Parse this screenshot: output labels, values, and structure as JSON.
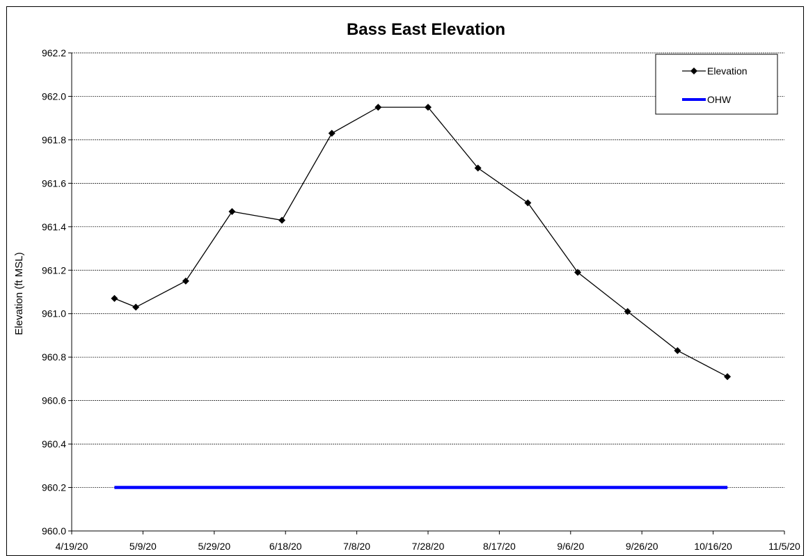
{
  "chart_data": {
    "type": "line",
    "title": "Bass East Elevation",
    "xlabel": "",
    "ylabel": "Elevation (ft MSL)",
    "xlim": [
      "4/19/20",
      "11/5/20"
    ],
    "x_ticks": [
      "4/19/20",
      "5/9/20",
      "5/29/20",
      "6/18/20",
      "7/8/20",
      "7/28/20",
      "8/17/20",
      "9/6/20",
      "9/26/20",
      "10/16/20",
      "11/5/20"
    ],
    "ylim": [
      960.0,
      962.2
    ],
    "y_ticks": [
      "960.0",
      "960.2",
      "960.4",
      "960.6",
      "960.8",
      "961.0",
      "961.2",
      "961.4",
      "961.6",
      "961.8",
      "962.0",
      "962.2"
    ],
    "grid": "horizontal",
    "legend_position": "top-right",
    "series": [
      {
        "name": "Elevation",
        "color": "#000000",
        "marker": "diamond",
        "x": [
          "5/1/20",
          "5/7/20",
          "5/21/20",
          "6/3/20",
          "6/17/20",
          "7/1/20",
          "7/14/20",
          "7/28/20",
          "8/11/20",
          "8/25/20",
          "9/8/20",
          "9/22/20",
          "10/6/20",
          "10/20/20"
        ],
        "values": [
          961.07,
          961.03,
          961.15,
          961.47,
          961.43,
          961.83,
          961.95,
          961.95,
          961.67,
          961.51,
          961.19,
          961.01,
          960.83,
          960.71
        ]
      },
      {
        "name": "OHW",
        "color": "#0000ff",
        "marker": "none",
        "x": [
          "5/1/20",
          "10/20/20"
        ],
        "values": [
          960.2,
          960.2
        ]
      }
    ]
  }
}
